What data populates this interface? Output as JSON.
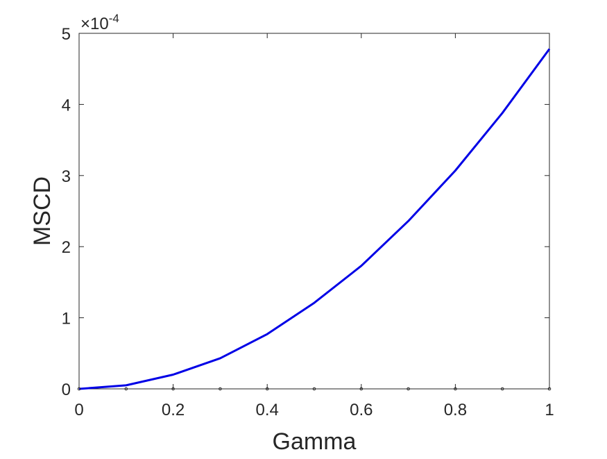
{
  "chart_data": {
    "type": "line",
    "xlabel": "Gamma",
    "ylabel": "MSCD",
    "xlim": [
      0,
      1
    ],
    "ylim": [
      0,
      5
    ],
    "y_scale_factor": "×10",
    "y_scale_exponent": "-4",
    "xticks": [
      "0",
      "0.2",
      "0.4",
      "0.6",
      "0.8",
      "1"
    ],
    "yticks": [
      "0",
      "1",
      "2",
      "3",
      "4",
      "5"
    ],
    "grid": false,
    "series": [
      {
        "color": "#0000e6",
        "x": [
          0,
          0.1,
          0.2,
          0.3,
          0.4,
          0.5,
          0.6,
          0.7,
          0.8,
          0.9,
          1.0
        ],
        "y": [
          0,
          0.05,
          0.2,
          0.43,
          0.77,
          1.21,
          1.73,
          2.36,
          3.07,
          3.88,
          4.78
        ]
      }
    ],
    "marker_series": {
      "color": "#262626",
      "x": [
        0,
        0.1,
        0.2,
        0.3,
        0.4,
        0.5,
        0.6,
        0.7,
        0.8,
        0.9,
        1.0
      ],
      "y": [
        0,
        0,
        0,
        0,
        0,
        0,
        0,
        0,
        0,
        0,
        0
      ]
    }
  }
}
